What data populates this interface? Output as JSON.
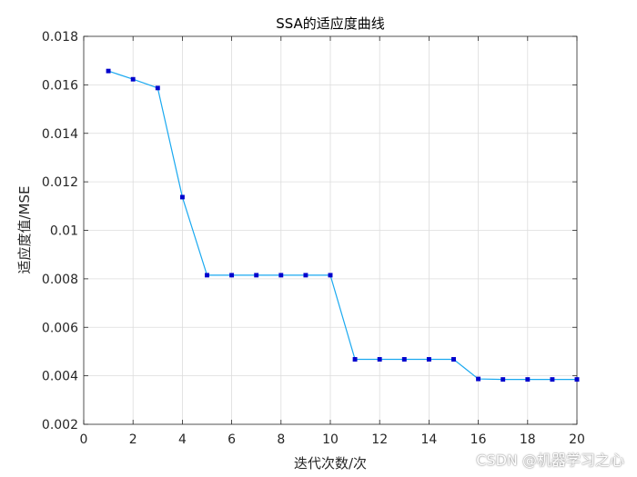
{
  "chart_data": {
    "type": "line",
    "title": "SSA的适应度曲线",
    "xlabel": "迭代次数/次",
    "ylabel": "适应度值/MSE",
    "xlim": [
      0,
      20
    ],
    "ylim": [
      0.002,
      0.018
    ],
    "x_ticks": [
      "0",
      "2",
      "4",
      "6",
      "8",
      "10",
      "12",
      "14",
      "16",
      "18",
      "20"
    ],
    "y_ticks": [
      "0.002",
      "0.004",
      "0.006",
      "0.008",
      "0.01",
      "0.012",
      "0.014",
      "0.016",
      "0.018"
    ],
    "grid": true,
    "series": [
      {
        "color": "#1AA9F0",
        "marker_color": "#0000CD",
        "x": [
          1,
          2,
          3,
          4,
          5,
          6,
          7,
          8,
          9,
          10,
          11,
          12,
          13,
          14,
          15,
          16,
          17,
          18,
          19,
          20
        ],
        "y": [
          0.01657,
          0.01623,
          0.01587,
          0.01137,
          0.00815,
          0.00815,
          0.00815,
          0.00815,
          0.00815,
          0.00815,
          0.00468,
          0.00468,
          0.00468,
          0.00468,
          0.00468,
          0.00387,
          0.00385,
          0.00385,
          0.00385,
          0.00385
        ]
      }
    ]
  },
  "watermark": "CSDN @机器学习之心"
}
